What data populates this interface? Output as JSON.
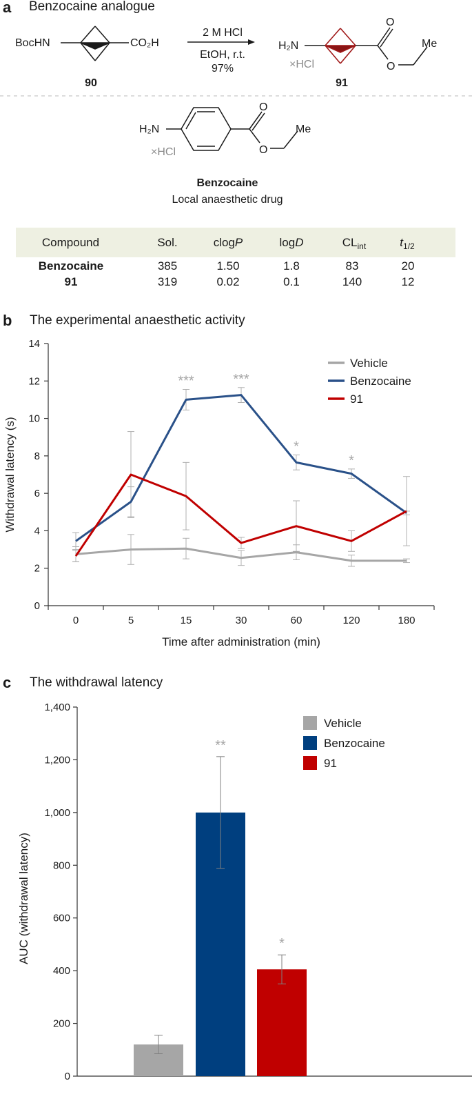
{
  "panel_a": {
    "letter": "a",
    "title": "Benzocaine analogue",
    "reactant": {
      "label_nh": "BocHN",
      "label_acid": "CO₂H",
      "id": "90"
    },
    "conditions": {
      "line1": "2 M HCl",
      "line2": "EtOH, r.t.",
      "line3": "97%"
    },
    "product": {
      "nh_label": "H₂N",
      "salt": "×HCl",
      "o_top": "O",
      "o_ester": "O",
      "me": "Me",
      "id": "91"
    },
    "benzocaine": {
      "nh_label": "H₂N",
      "salt": "×HCl",
      "o_top": "O",
      "o_ester": "O",
      "me": "Me",
      "name": "Benzocaine",
      "description": "Local anaesthetic drug"
    },
    "table": {
      "headers": [
        "Compound",
        "Sol.",
        "clog",
        "P",
        "log",
        "D",
        "CL",
        "int",
        "t",
        "1/2"
      ],
      "rows": [
        {
          "compound": "Benzocaine",
          "sol": "385",
          "clogp": "1.50",
          "logd": "1.8",
          "clint": "83",
          "t12": "20"
        },
        {
          "compound": "91",
          "sol": "319",
          "clogp": "0.02",
          "logd": "0.1",
          "clint": "140",
          "t12": "12"
        }
      ]
    }
  },
  "panel_b": {
    "letter": "b",
    "title": "The experimental anaesthetic activity"
  },
  "panel_c": {
    "letter": "c",
    "title": "The withdrawal latency"
  },
  "colors": {
    "vehicle": "#a6a6a6",
    "benzocaine": "#2a5189",
    "compound91": "#c00000",
    "bar_benzocaine": "#003f7f",
    "sig": "#a6a6a6",
    "table_bg": "#eef0e2"
  },
  "chart_data": [
    {
      "type": "line",
      "title": "The experimental anaesthetic activity",
      "xlabel": "Time after administration (min)",
      "ylabel": "Withdrawal latency (s)",
      "categories": [
        "0",
        "5",
        "15",
        "30",
        "60",
        "120",
        "180"
      ],
      "ylim": [
        0,
        14
      ],
      "yticks": [
        0,
        2,
        4,
        6,
        8,
        10,
        12,
        14
      ],
      "legend": "top-right",
      "series": [
        {
          "name": "Vehicle",
          "values": [
            2.75,
            3.0,
            3.05,
            2.55,
            2.85,
            2.4,
            2.4
          ],
          "errors": [
            0.4,
            0.8,
            0.55,
            0.4,
            0.4,
            0.3,
            0.1
          ]
        },
        {
          "name": "Benzocaine",
          "values": [
            3.45,
            5.55,
            11.0,
            11.25,
            7.65,
            7.05,
            4.95
          ],
          "errors": [
            0.45,
            0.8,
            0.55,
            0.4,
            0.4,
            0.25,
            0.1
          ]
        },
        {
          "name": "91",
          "values": [
            2.65,
            7.0,
            5.85,
            3.35,
            4.25,
            3.45,
            5.05
          ],
          "errors": [
            0.3,
            2.3,
            1.8,
            0.3,
            1.35,
            0.55,
            1.85
          ]
        }
      ],
      "annotations": [
        {
          "index": 2,
          "text": "***"
        },
        {
          "index": 3,
          "text": "***"
        },
        {
          "index": 4,
          "text": "*"
        },
        {
          "index": 5,
          "text": "*"
        }
      ]
    },
    {
      "type": "bar",
      "title": "The withdrawal latency",
      "ylabel": "AUC (withdrawal latency)",
      "categories": [
        "Vehicle",
        "Benzocaine",
        "91"
      ],
      "values": [
        120,
        1000,
        405
      ],
      "errors": [
        35,
        212,
        55
      ],
      "annotations": [
        "",
        "**",
        "*"
      ],
      "ylim": [
        0,
        1400
      ],
      "yticks": [
        0,
        200,
        400,
        600,
        800,
        1000,
        1200,
        1400
      ],
      "ytick_labels": [
        "0",
        "200",
        "400",
        "600",
        "800",
        "1,000",
        "1,200",
        "1,400"
      ],
      "legend": "top-right"
    }
  ]
}
